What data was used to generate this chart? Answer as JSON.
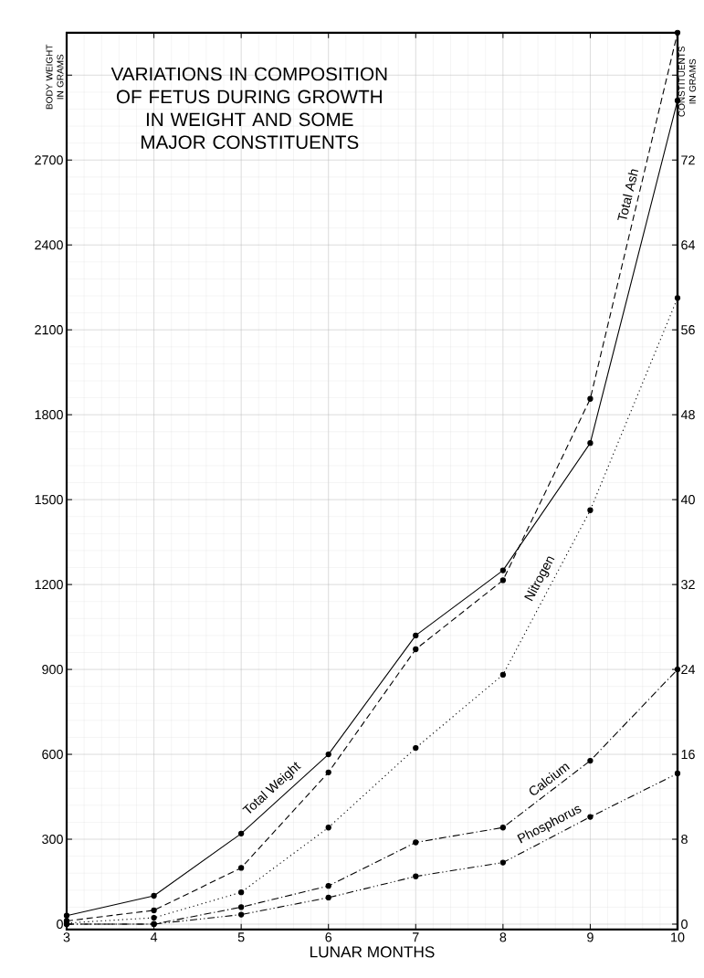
{
  "chart_data": {
    "type": "line",
    "title": "VARIATIONS IN COMPOSITION OF FETUS DURING GROWTH IN WEIGHT AND SOME MAJOR CONSTITUENTS",
    "xlabel": "LUNAR MONTHS",
    "ylabel": "BODY WEIGHT IN GRAMS",
    "y2label": "CONSTITUENTS IN GRAMS",
    "x": [
      3,
      4,
      5,
      6,
      7,
      8,
      9,
      10
    ],
    "xlim": [
      3,
      10
    ],
    "xticks": [
      3,
      4,
      5,
      6,
      7,
      8,
      9,
      10
    ],
    "ylim": [
      -18.75,
      3150
    ],
    "yticks": [
      0,
      300,
      600,
      900,
      1200,
      1500,
      1800,
      2100,
      2400,
      2700,
      {
        "value": 3000,
        "label": null
      }
    ],
    "y2lim": [
      -0.5,
      84
    ],
    "y2ticks": [
      0,
      8,
      16,
      24,
      32,
      40,
      48,
      56,
      64,
      72,
      {
        "value": 80,
        "label": null
      }
    ],
    "grid": true,
    "marker": "circle",
    "series": [
      {
        "name": "Total Weight",
        "color": "#000000",
        "line_style": "solid",
        "values": [
          30,
          100,
          320,
          600,
          1020,
          1250,
          1700,
          2910
        ]
      },
      {
        "name": "Total Ash",
        "color": "#000000",
        "line_style": "dashed",
        "axis": "y2",
        "values": [
          0.3,
          1.3,
          5.3,
          14.3,
          25.9,
          32.4,
          49.5,
          84
        ]
      },
      {
        "name": "Nitrogen",
        "color": "#000000",
        "line_style": "dotted",
        "axis": "y2",
        "values": [
          0.1,
          0.6,
          3.0,
          9.1,
          16.6,
          23.5,
          39.0,
          59.0
        ]
      },
      {
        "name": "Calcium",
        "color": "#000000",
        "line_style": "dashdotted",
        "axis": "y2",
        "values": [
          0,
          0,
          1.6,
          3.6,
          7.7,
          9.1,
          15.4,
          24.0
        ]
      },
      {
        "name": "Phosphorus",
        "color": "#000000",
        "line_style": "dashdotdotted",
        "axis": "y2",
        "values": [
          0,
          0,
          0.9,
          2.5,
          4.5,
          5.8,
          10.1,
          14.2
        ]
      }
    ]
  }
}
